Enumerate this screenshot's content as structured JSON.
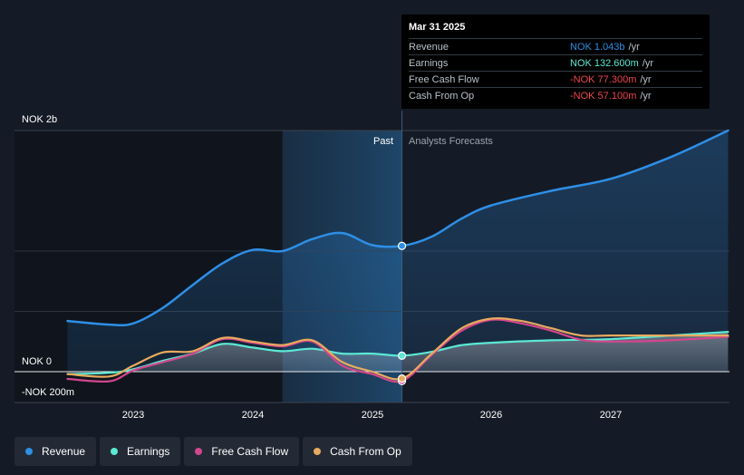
{
  "chart_data": {
    "type": "line",
    "title": "",
    "y_labels": {
      "top": "NOK 2b",
      "zero": "NOK 0",
      "bottom": "-NOK 200m"
    },
    "ylim": [
      -200,
      2000
    ],
    "xlim": [
      2022.2,
      2028.0
    ],
    "x_ticks": [
      "2023",
      "2024",
      "2025",
      "2026",
      "2027"
    ],
    "x_tick_values": [
      2023,
      2024,
      2025,
      2026,
      2027
    ],
    "divider_x": 2025.25,
    "past_shade_start": 2024.25,
    "region_labels": {
      "past": "Past",
      "forecast": "Analysts Forecasts"
    },
    "series": [
      {
        "name": "Revenue",
        "color": "#2e8fe6",
        "filled": true,
        "x": [
          2022.45,
          2022.8,
          2023.0,
          2023.25,
          2023.5,
          2023.75,
          2024.0,
          2024.25,
          2024.5,
          2024.75,
          2025.0,
          2025.25,
          2025.5,
          2025.75,
          2026.0,
          2026.5,
          2027.0,
          2027.5,
          2027.98
        ],
        "y": [
          420,
          390,
          400,
          530,
          720,
          900,
          1010,
          1000,
          1100,
          1150,
          1050,
          1043,
          1120,
          1270,
          1380,
          1500,
          1600,
          1780,
          2000
        ]
      },
      {
        "name": "Earnings",
        "color": "#5ce8d4",
        "filled": false,
        "x": [
          2022.45,
          2022.8,
          2023.0,
          2023.25,
          2023.5,
          2023.75,
          2024.0,
          2024.25,
          2024.5,
          2024.75,
          2025.0,
          2025.25,
          2025.5,
          2025.75,
          2026.0,
          2026.5,
          2027.0,
          2027.5,
          2027.98
        ],
        "y": [
          -20,
          -10,
          20,
          90,
          150,
          230,
          200,
          170,
          190,
          150,
          150,
          132.6,
          165,
          220,
          240,
          260,
          270,
          300,
          330
        ]
      },
      {
        "name": "Free Cash Flow",
        "color": "#d3468d",
        "filled": false,
        "x": [
          2022.45,
          2022.8,
          2023.0,
          2023.25,
          2023.5,
          2023.75,
          2024.0,
          2024.25,
          2024.5,
          2024.75,
          2025.0,
          2025.25,
          2025.5,
          2025.75,
          2026.0,
          2026.25,
          2026.5,
          2026.75,
          2027.0,
          2027.5,
          2027.98
        ],
        "y": [
          -60,
          -80,
          10,
          80,
          150,
          270,
          240,
          210,
          250,
          50,
          -20,
          -77.3,
          140,
          340,
          430,
          400,
          340,
          265,
          250,
          260,
          290
        ]
      },
      {
        "name": "Cash From Op",
        "color": "#e8aa5e",
        "filled": false,
        "x": [
          2022.45,
          2022.8,
          2023.0,
          2023.25,
          2023.5,
          2023.75,
          2024.0,
          2024.25,
          2024.5,
          2024.75,
          2025.0,
          2025.25,
          2025.5,
          2025.75,
          2026.0,
          2026.25,
          2026.5,
          2026.75,
          2027.0,
          2027.5,
          2027.98
        ],
        "y": [
          -20,
          -40,
          50,
          160,
          170,
          280,
          250,
          220,
          260,
          80,
          0,
          -57.1,
          150,
          360,
          440,
          420,
          360,
          300,
          300,
          300,
          300
        ]
      }
    ],
    "highlight_points": [
      {
        "series": "Revenue",
        "x": 2025.25,
        "y": 1043
      },
      {
        "series": "Earnings",
        "x": 2025.25,
        "y": 132.6
      },
      {
        "series": "Free Cash Flow",
        "x": 2025.25,
        "y": -77.3
      },
      {
        "series": "Cash From Op",
        "x": 2025.25,
        "y": -57.1
      }
    ]
  },
  "tooltip": {
    "date": "Mar 31 2025",
    "rows": [
      {
        "name": "Revenue",
        "value": "NOK 1.043b",
        "unit": "/yr",
        "color": "#2e8fe6"
      },
      {
        "name": "Earnings",
        "value": "NOK 132.600m",
        "unit": "/yr",
        "color": "#5ce8d4"
      },
      {
        "name": "Free Cash Flow",
        "value": "-NOK 77.300m",
        "unit": "/yr",
        "color": "#f0454e"
      },
      {
        "name": "Cash From Op",
        "value": "-NOK 57.100m",
        "unit": "/yr",
        "color": "#f0454e"
      }
    ]
  },
  "legend": [
    {
      "label": "Revenue",
      "color": "#2e8fe6"
    },
    {
      "label": "Earnings",
      "color": "#5ce8d4"
    },
    {
      "label": "Free Cash Flow",
      "color": "#d3468d"
    },
    {
      "label": "Cash From Op",
      "color": "#e8aa5e"
    }
  ]
}
